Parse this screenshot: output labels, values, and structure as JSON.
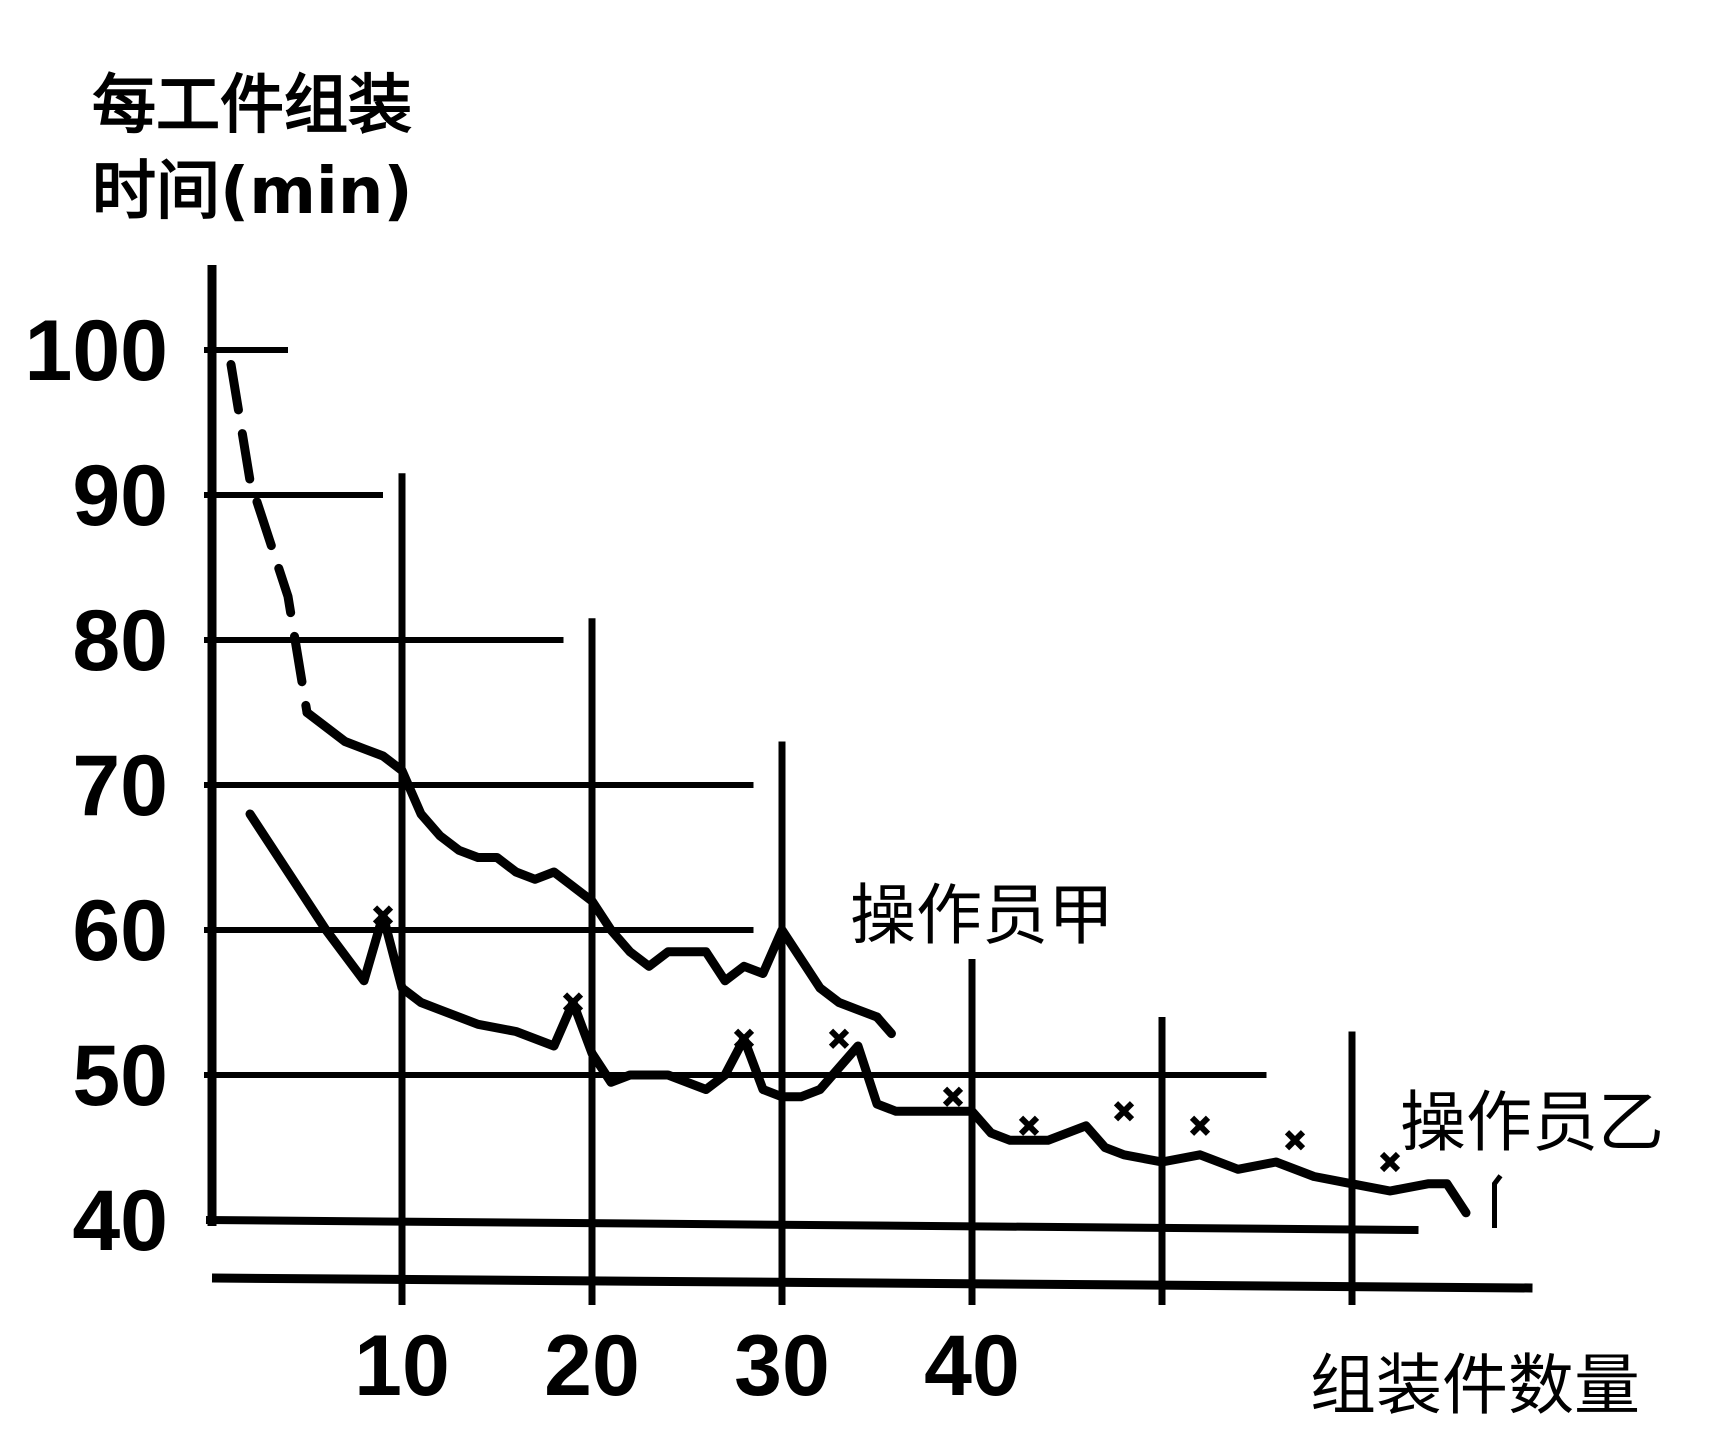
{
  "chart_data": {
    "type": "line",
    "title": "",
    "ylabel_lines": [
      "每工件组装",
      "时间(min)"
    ],
    "xlabel": "组装件数量",
    "ylim": [
      40,
      100
    ],
    "yticks": [
      100,
      90,
      80,
      70,
      60,
      50,
      40
    ],
    "xticks": [
      10,
      20,
      30,
      40
    ],
    "grid": "staircase",
    "series": [
      {
        "name": "操作员甲",
        "style": "dashed-then-solid",
        "x": [
          1,
          2,
          3,
          4,
          5,
          6,
          7,
          8,
          9,
          10,
          11,
          12,
          13,
          14,
          15,
          16,
          17,
          18,
          19,
          20,
          21,
          22,
          23,
          24,
          25,
          26,
          27,
          28,
          29,
          30,
          31,
          32,
          33,
          34,
          35,
          36
        ],
        "y": [
          99,
          91,
          87,
          83,
          75,
          74,
          73,
          72.5,
          72,
          71,
          68,
          66.5,
          65.5,
          65,
          65,
          64,
          63.5,
          64,
          63,
          62,
          60,
          58.5,
          57.5,
          58.5,
          58.5,
          58.5,
          56.5,
          57.5,
          57,
          60,
          58,
          56,
          55,
          54.5,
          54,
          52.5
        ]
      },
      {
        "name": "操作员乙",
        "style": "solid",
        "x": [
          2,
          4,
          6,
          8,
          9,
          10,
          11,
          12,
          14,
          16,
          18,
          19,
          20,
          21,
          22,
          24,
          26,
          27,
          28,
          29,
          30,
          31,
          32,
          34,
          35,
          36,
          38,
          40,
          41,
          42,
          44,
          46,
          47,
          48,
          50,
          52,
          54,
          56,
          58,
          60,
          62,
          64,
          65,
          66
        ],
        "y": [
          68,
          64,
          60,
          56.5,
          61,
          56,
          55,
          54.5,
          53.5,
          53,
          52,
          55,
          51.5,
          49.5,
          50,
          50,
          49,
          50,
          52.5,
          49,
          48.5,
          48.5,
          49,
          52,
          48,
          47.5,
          47.5,
          47.5,
          46,
          45.5,
          45.5,
          46.5,
          45,
          44.5,
          44,
          44.5,
          43.5,
          44,
          43,
          42.5,
          42,
          42.5,
          42.5,
          40.5
        ]
      }
    ],
    "marked_points": [
      {
        "x": 9,
        "y": 61
      },
      {
        "x": 19,
        "y": 55
      },
      {
        "x": 28,
        "y": 52.5
      },
      {
        "x": 33,
        "y": 52.5
      },
      {
        "x": 39,
        "y": 48.5
      },
      {
        "x": 43,
        "y": 46.5
      },
      {
        "x": 48,
        "y": 47.5
      },
      {
        "x": 52,
        "y": 46.5
      },
      {
        "x": 57,
        "y": 45.5
      },
      {
        "x": 62,
        "y": 44
      }
    ],
    "ink_color": "#000000",
    "background_color": "#ffffff"
  }
}
